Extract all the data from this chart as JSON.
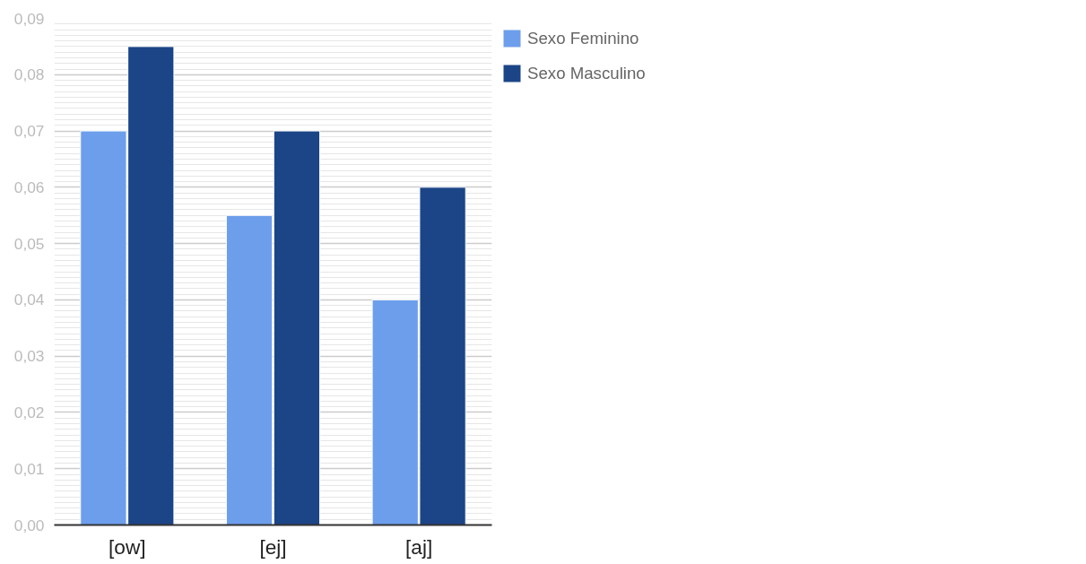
{
  "chart_data": {
    "type": "bar",
    "categories": [
      "[ow]",
      "[ej]",
      "[aj]"
    ],
    "series": [
      {
        "name": "Sexo Feminino",
        "color": "#6d9eeb",
        "values": [
          0.07,
          0.055,
          0.04
        ]
      },
      {
        "name": "Sexo Masculino",
        "color": "#1c4587",
        "values": [
          0.085,
          0.07,
          0.06
        ]
      }
    ],
    "ylim": [
      0,
      0.09
    ],
    "yticks": [
      {
        "value": 0,
        "label": "0,00"
      },
      {
        "value": 0.01,
        "label": "0,01"
      },
      {
        "value": 0.02,
        "label": "0,02"
      },
      {
        "value": 0.03,
        "label": "0,03"
      },
      {
        "value": 0.04,
        "label": "0,04"
      },
      {
        "value": 0.05,
        "label": "0,05"
      },
      {
        "value": 0.06,
        "label": "0,06"
      },
      {
        "value": 0.07,
        "label": "0,07"
      },
      {
        "value": 0.08,
        "label": "0,08"
      },
      {
        "value": 0.09,
        "label": "0,09"
      }
    ],
    "grid": "y",
    "legend": "top right"
  }
}
